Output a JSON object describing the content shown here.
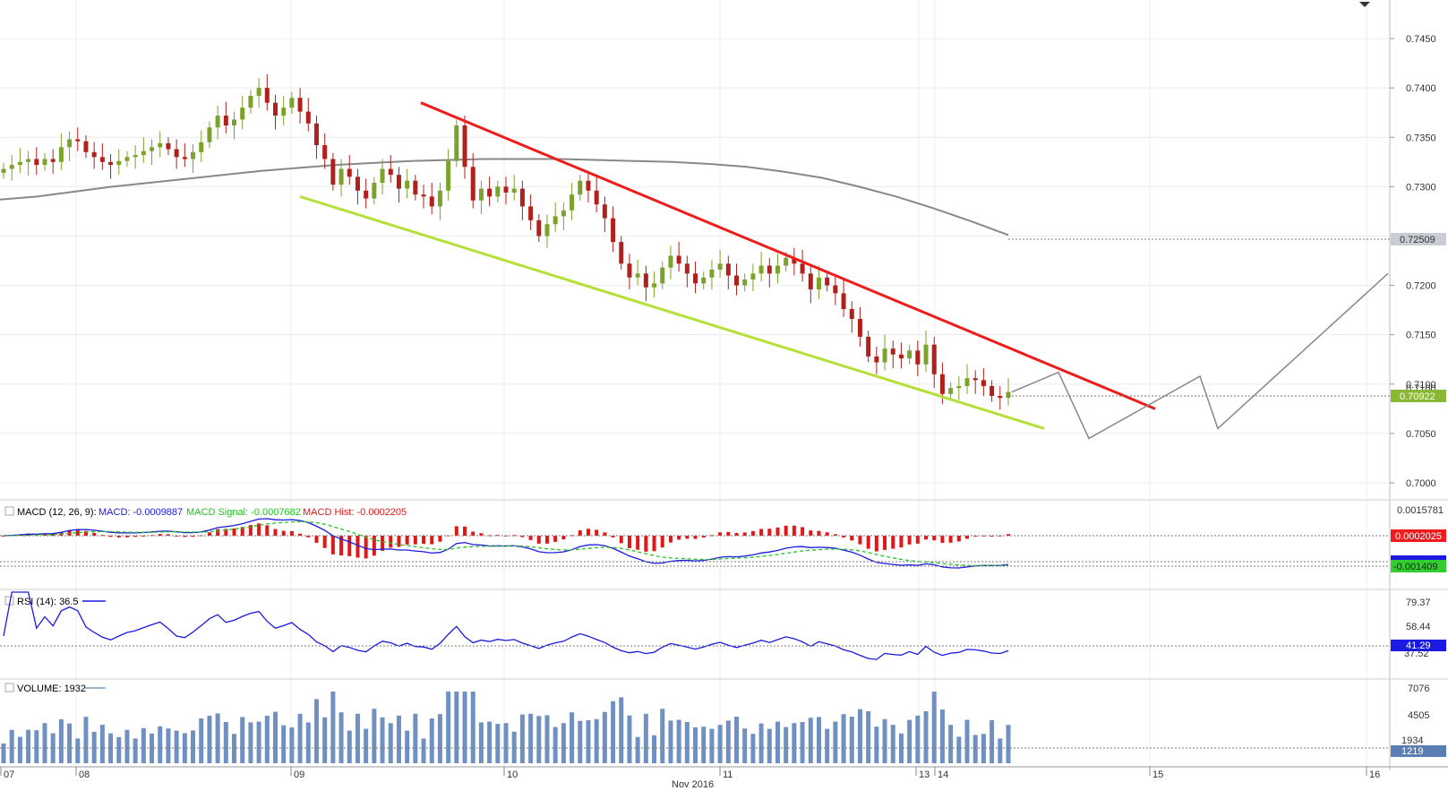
{
  "chart_data": [
    {
      "type": "candlestick",
      "panel": "price",
      "ylim": [
        0.699,
        0.748
      ],
      "y_ticks": [
        "0.7450",
        "0.7400",
        "0.7350",
        "0.7300",
        "0.7200",
        "0.7150",
        "0.7100",
        "0.7050",
        "0.7000"
      ],
      "ma_badge": "0.72509",
      "price_badge": "0.70922",
      "ma_value": 0.72509,
      "last_price": 0.70922,
      "colors": {
        "up": "#7ba32b",
        "down": "#b0201c",
        "ma": "#888888",
        "upper_trend": "#ee1c1c",
        "lower_trend": "#b5e03a",
        "projection": "#888888",
        "badge_ma": "#c9ccd2",
        "badge_price": "#8ab834"
      },
      "candles_close": [
        0.7318,
        0.7322,
        0.7325,
        0.7328,
        0.7322,
        0.7328,
        0.7325,
        0.734,
        0.7348,
        0.7346,
        0.7335,
        0.733,
        0.7325,
        0.7322,
        0.7326,
        0.733,
        0.7332,
        0.7336,
        0.734,
        0.7344,
        0.7338,
        0.733,
        0.7328,
        0.7335,
        0.7345,
        0.736,
        0.7372,
        0.7362,
        0.7368,
        0.738,
        0.7392,
        0.74,
        0.7385,
        0.7372,
        0.738,
        0.739,
        0.7376,
        0.7364,
        0.7342,
        0.7328,
        0.7302,
        0.7318,
        0.731,
        0.7296,
        0.7288,
        0.7304,
        0.7318,
        0.7312,
        0.7298,
        0.7306,
        0.7292,
        0.729,
        0.728,
        0.7296,
        0.7326,
        0.7362,
        0.732,
        0.7286,
        0.7298,
        0.729,
        0.73,
        0.7294,
        0.7298,
        0.728,
        0.7266,
        0.725,
        0.7262,
        0.727,
        0.7276,
        0.7292,
        0.7306,
        0.7296,
        0.7282,
        0.7268,
        0.7244,
        0.7222,
        0.7208,
        0.7212,
        0.7198,
        0.7202,
        0.7218,
        0.723,
        0.7222,
        0.7212,
        0.7202,
        0.7208,
        0.7216,
        0.7222,
        0.721,
        0.72,
        0.7206,
        0.7212,
        0.722,
        0.7212,
        0.722,
        0.7228,
        0.7222,
        0.7212,
        0.7196,
        0.7208,
        0.72,
        0.7192,
        0.7176,
        0.7166,
        0.7148,
        0.7128,
        0.7122,
        0.7136,
        0.713,
        0.7126,
        0.7134,
        0.712,
        0.714,
        0.711,
        0.709,
        0.7096,
        0.7098,
        0.7106,
        0.7104,
        0.7098,
        0.7088,
        0.7086,
        0.7092
      ],
      "ma_values": [
        0.7287,
        0.729,
        0.7295,
        0.73,
        0.7304,
        0.7308,
        0.7312,
        0.7316,
        0.7319,
        0.7322,
        0.7324,
        0.7326,
        0.7327,
        0.7328,
        0.7328,
        0.7328,
        0.7327,
        0.7326,
        0.7325,
        0.7323,
        0.732,
        0.7315,
        0.7309,
        0.73,
        0.729,
        0.7278,
        0.7265,
        0.7251
      ],
      "upper_trendline": [
        [
          0.7385,
          0.736
        ],
        [
          0.7075,
          0.7073
        ]
      ],
      "lower_trendline": [
        [
          0.729,
          0.7283
        ],
        [
          0.7055,
          0.7053
        ]
      ],
      "projection": [
        0.7092,
        0.7112,
        0.7045,
        0.7108,
        0.7055,
        0.7212
      ]
    },
    {
      "type": "line",
      "panel": "macd",
      "title": "MACD (12, 26, 9):",
      "series": [
        {
          "name": "MACD: -0.0009887",
          "color": "#1a1ae0"
        },
        {
          "name": "MACD Signal: -0.0007682",
          "color": "#22c422"
        },
        {
          "name": "MACD Hist: -0.0002205",
          "color": "#e01818"
        }
      ],
      "y_ticks": [
        "0.0015781"
      ],
      "badge_hist": "0.0002025",
      "badge_signal": "-0.001409"
    },
    {
      "type": "line",
      "panel": "rsi",
      "title": "RSI (14): 36.5",
      "y_ticks": [
        "79.37",
        "58.44"
      ],
      "badge": "41.29",
      "badge_partial": "37.52"
    },
    {
      "type": "bar",
      "panel": "volume",
      "title": "VOLUME: 1932",
      "y_ticks": [
        "7076",
        "4505"
      ],
      "badge": "1219",
      "badge_partial": "1934"
    }
  ],
  "x_axis": {
    "labels": [
      "07",
      "08",
      "09",
      "10",
      "11",
      "13",
      "14",
      "15",
      "16"
    ],
    "month_label": "Nov 2016"
  }
}
